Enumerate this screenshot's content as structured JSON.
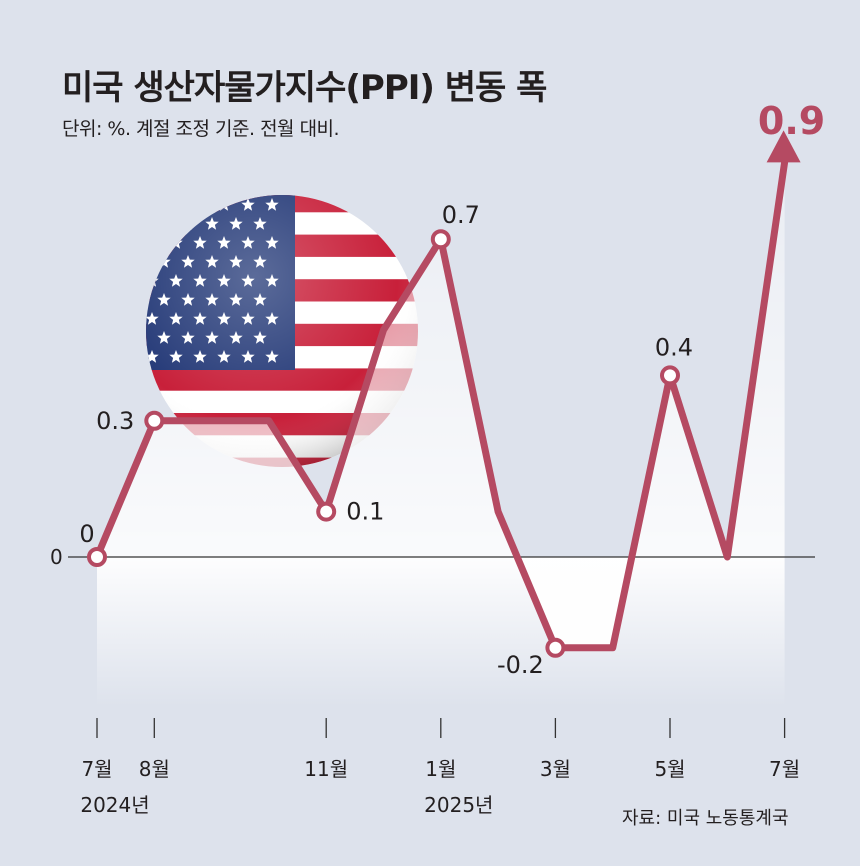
{
  "header": {
    "title": "미국 생산자물가지수(PPI) 변동 폭",
    "subtitle": "단위: %. 계절 조정 기준. 전월 대비."
  },
  "source": "자료: 미국 노동통계국",
  "colors": {
    "line": "#b54a62",
    "background": "#dde2ec",
    "axis": "#333333",
    "text": "#231f20"
  },
  "chart_data": {
    "type": "line",
    "x": [
      "2024-07",
      "2024-08",
      "2024-09",
      "2024-10",
      "2024-11",
      "2024-12",
      "2025-01",
      "2025-02",
      "2025-03",
      "2025-04",
      "2025-05",
      "2025-06",
      "2025-07"
    ],
    "series": [
      {
        "values": [
          0,
          0.3,
          0.3,
          0.3,
          0.1,
          0.5,
          0.7,
          0.1,
          -0.2,
          -0.2,
          0.4,
          0,
          0.9
        ]
      }
    ],
    "y_zero_label": "0",
    "ylim": [
      -0.2,
      0.9
    ],
    "data_labels": [
      {
        "index": 0,
        "text": "0"
      },
      {
        "index": 1,
        "text": "0.3"
      },
      {
        "index": 4,
        "text": "0.1"
      },
      {
        "index": 6,
        "text": "0.7"
      },
      {
        "index": 8,
        "text": "-0.2"
      },
      {
        "index": 10,
        "text": "0.4"
      },
      {
        "index": 12,
        "text": "0.9"
      }
    ],
    "tick_labels": [
      {
        "index": 0,
        "month": "7월",
        "year": "2024년"
      },
      {
        "index": 1,
        "month": "8월",
        "year": ""
      },
      {
        "index": 4,
        "month": "11월",
        "year": ""
      },
      {
        "index": 6,
        "month": "1월",
        "year": "2025년"
      },
      {
        "index": 8,
        "month": "3월",
        "year": ""
      },
      {
        "index": 10,
        "month": "5월",
        "year": ""
      },
      {
        "index": 12,
        "month": "7월",
        "year": ""
      }
    ],
    "grid": false
  }
}
